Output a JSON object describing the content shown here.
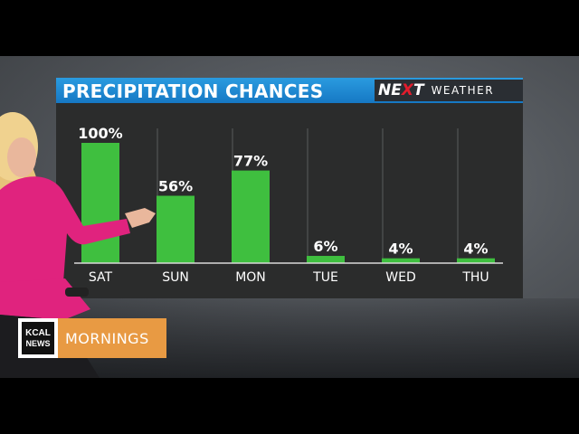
{
  "graphic": {
    "title": "PRECIPITATION CHANCES",
    "logo_next_prefix": "NE",
    "logo_next_x": "X",
    "logo_next_suffix": "T",
    "logo_weather": "WEATHER"
  },
  "lower_third": {
    "station_line1": "KCAL",
    "station_line2": "NEWS",
    "show": "MORNINGS"
  },
  "colors": {
    "bar": "#3fbf3f",
    "title_bar": "#1f8ad4",
    "panel": "#2b2c2c",
    "lower_third_accent": "#e89a43",
    "logo_x": "#e21c2c"
  },
  "chart_data": {
    "type": "bar",
    "title": "PRECIPITATION CHANCES",
    "categories": [
      "SAT",
      "SUN",
      "MON",
      "TUE",
      "WED",
      "THU"
    ],
    "values": [
      100,
      56,
      77,
      6,
      4,
      4
    ],
    "value_labels": [
      "100%",
      "56%",
      "77%",
      "6%",
      "4%",
      "4%"
    ],
    "ylim": [
      0,
      100
    ],
    "grid": true,
    "legend": "none"
  }
}
